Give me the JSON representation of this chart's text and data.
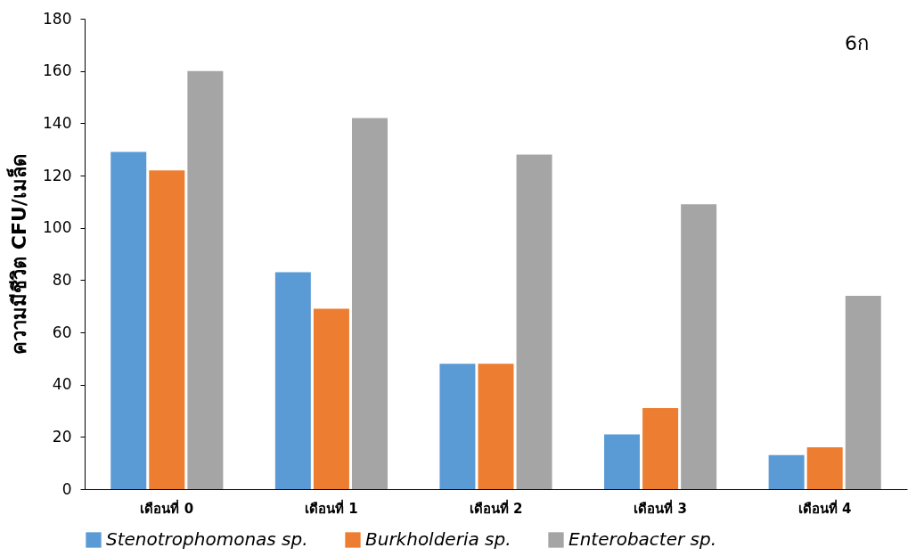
{
  "chart_data": {
    "type": "bar",
    "ylabel": "ความมีชีวิต CFU/เมล็ด",
    "categories": [
      "เดือนที่ 0",
      "เดือนที่ 1",
      "เดือนที่ 2",
      "เดือนที่ 3",
      "เดือนที่ 4"
    ],
    "series": [
      {
        "name": "Stenotrophomonas sp.",
        "color": "#5b9bd5",
        "values": [
          129,
          83,
          48,
          21,
          13
        ]
      },
      {
        "name": "Burkholderia sp.",
        "color": "#ed7d31",
        "values": [
          122,
          69,
          48,
          31,
          16
        ]
      },
      {
        "name": "Enterobacter sp.",
        "color": "#a5a5a5",
        "values": [
          160,
          142,
          128,
          109,
          74
        ]
      }
    ],
    "ylim": [
      0,
      180
    ],
    "yticks": [
      0,
      20,
      40,
      60,
      80,
      100,
      120,
      140,
      160,
      180
    ],
    "grid": false,
    "legend": "bottom",
    "annotations": [
      "6ก"
    ]
  }
}
